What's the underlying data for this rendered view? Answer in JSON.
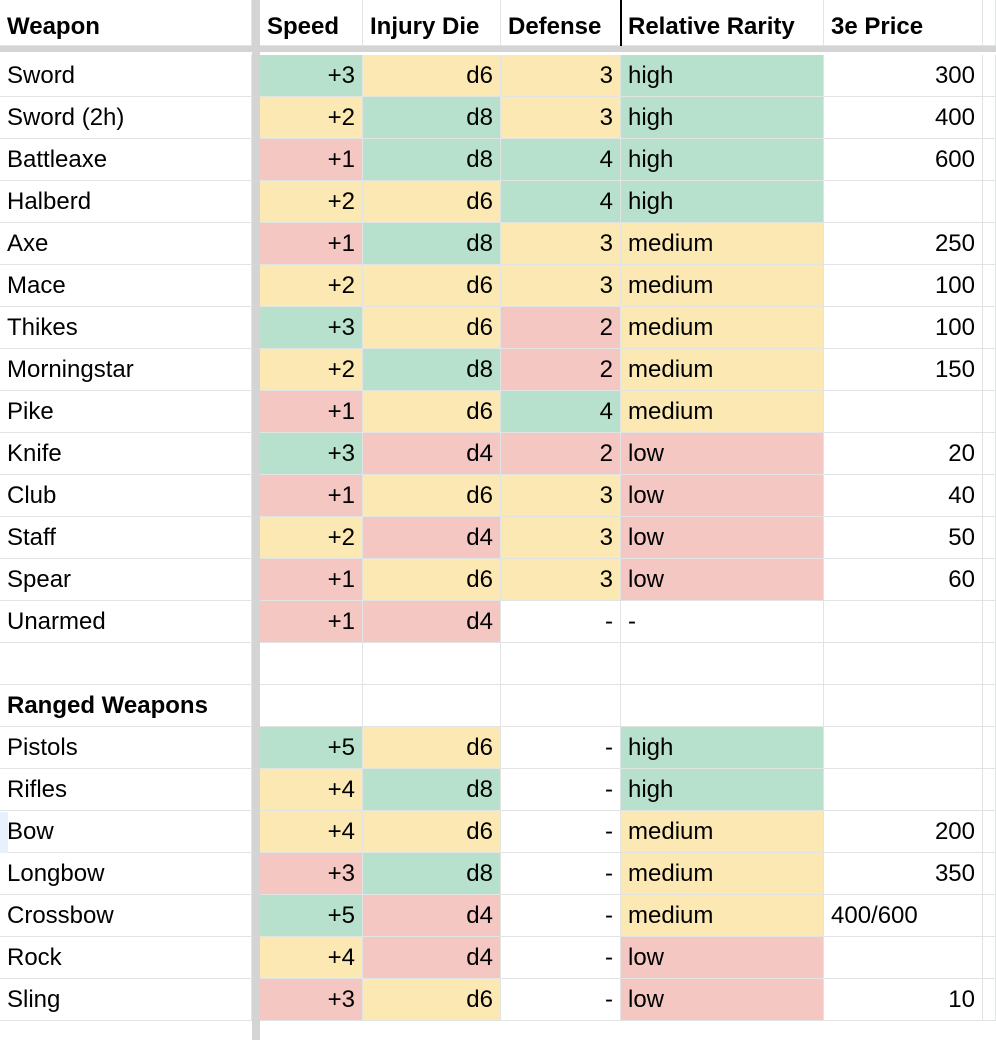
{
  "header": {
    "weapon": "Weapon",
    "speed": "Speed",
    "injury_die": "Injury Die",
    "defense": "Defense",
    "relative_rarity": "Relative Rarity",
    "price": "3e Price"
  },
  "colors": {
    "green": "#b7e1cd",
    "yellow": "#fce8b2",
    "red": "#f4c7c3",
    "grid": "#e2e3e3",
    "freeze_bar": "#d4d4d4"
  },
  "melee_rows": [
    {
      "weapon": "Sword",
      "speed": "+3",
      "injury": "d6",
      "defense": "3",
      "rarity": "high",
      "price": "300"
    },
    {
      "weapon": "Sword (2h)",
      "speed": "+2",
      "injury": "d8",
      "defense": "3",
      "rarity": "high",
      "price": "400"
    },
    {
      "weapon": "Battleaxe",
      "speed": "+1",
      "injury": "d8",
      "defense": "4",
      "rarity": "high",
      "price": "600"
    },
    {
      "weapon": "Halberd",
      "speed": "+2",
      "injury": "d6",
      "defense": "4",
      "rarity": "high",
      "price": ""
    },
    {
      "weapon": "Axe",
      "speed": "+1",
      "injury": "d8",
      "defense": "3",
      "rarity": "medium",
      "price": "250"
    },
    {
      "weapon": "Mace",
      "speed": "+2",
      "injury": "d6",
      "defense": "3",
      "rarity": "medium",
      "price": "100"
    },
    {
      "weapon": "Thikes",
      "speed": "+3",
      "injury": "d6",
      "defense": "2",
      "rarity": "medium",
      "price": "100"
    },
    {
      "weapon": "Morningstar",
      "speed": "+2",
      "injury": "d8",
      "defense": "2",
      "rarity": "medium",
      "price": "150"
    },
    {
      "weapon": "Pike",
      "speed": "+1",
      "injury": "d6",
      "defense": "4",
      "rarity": "medium",
      "price": ""
    },
    {
      "weapon": "Knife",
      "speed": "+3",
      "injury": "d4",
      "defense": "2",
      "rarity": "low",
      "price": "20"
    },
    {
      "weapon": "Club",
      "speed": "+1",
      "injury": "d6",
      "defense": "3",
      "rarity": "low",
      "price": "40"
    },
    {
      "weapon": "Staff",
      "speed": "+2",
      "injury": "d4",
      "defense": "3",
      "rarity": "low",
      "price": "50"
    },
    {
      "weapon": "Spear",
      "speed": "+1",
      "injury": "d6",
      "defense": "3",
      "rarity": "low",
      "price": "60"
    },
    {
      "weapon": "Unarmed",
      "speed": "+1",
      "injury": "d4",
      "defense": "-",
      "rarity": "-",
      "price": ""
    }
  ],
  "ranged_heading": "Ranged Weapons",
  "ranged_rows": [
    {
      "weapon": "Pistols",
      "speed": "+5",
      "injury": "d6",
      "defense": "-",
      "rarity": "high",
      "price": ""
    },
    {
      "weapon": "Rifles",
      "speed": "+4",
      "injury": "d8",
      "defense": "-",
      "rarity": "high",
      "price": ""
    },
    {
      "weapon": "Bow",
      "speed": "+4",
      "injury": "d6",
      "defense": "-",
      "rarity": "medium",
      "price": "200"
    },
    {
      "weapon": "Longbow",
      "speed": "+3",
      "injury": "d8",
      "defense": "-",
      "rarity": "medium",
      "price": "350"
    },
    {
      "weapon": "Crossbow",
      "speed": "+5",
      "injury": "d4",
      "defense": "-",
      "rarity": "medium",
      "price": "400/600"
    },
    {
      "weapon": "Rock",
      "speed": "+4",
      "injury": "d4",
      "defense": "-",
      "rarity": "low",
      "price": ""
    },
    {
      "weapon": "Sling",
      "speed": "+3",
      "injury": "d6",
      "defense": "-",
      "rarity": "low",
      "price": "10"
    }
  ]
}
